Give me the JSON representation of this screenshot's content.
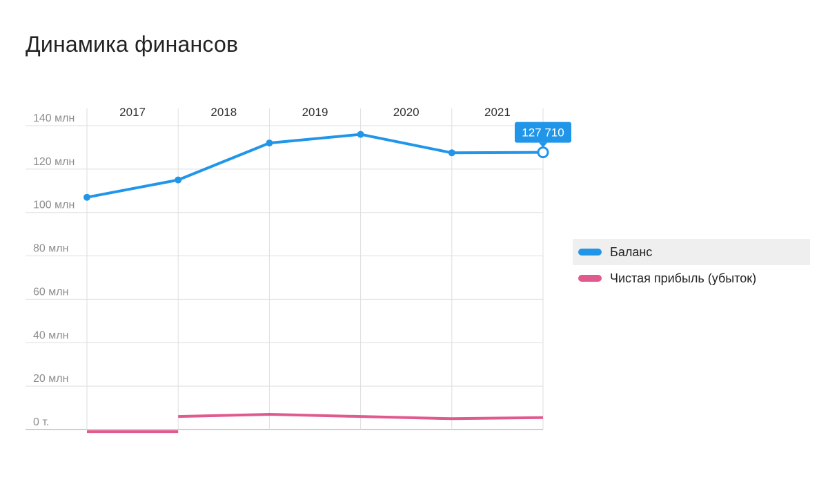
{
  "title": "Динамика финансов",
  "chart_data": {
    "type": "line",
    "title": "Динамика финансов",
    "categories": [
      "2017",
      "2018",
      "2019",
      "2020",
      "2021"
    ],
    "y_tick_labels": [
      "0 т.",
      "20 млн",
      "40 млн",
      "60 млн",
      "80 млн",
      "100 млн",
      "120 млн",
      "140 млн"
    ],
    "ylim": [
      0,
      140000000
    ],
    "grid": true,
    "legend_position": "right",
    "series": [
      {
        "name": "Баланс",
        "color": "#2196e9",
        "x": [
          2016.5,
          2017.5,
          2018.5,
          2019.5,
          2020.5,
          2021.5
        ],
        "values": [
          107000000,
          115000000,
          132000000,
          136000000,
          127500000,
          127710000
        ]
      },
      {
        "name": "Чистая прибыль (убыток)",
        "color": "#e05a8e",
        "segments": [
          {
            "x": [
              2016.5,
              2017.5
            ],
            "values": [
              -1000000,
              -1000000
            ]
          },
          {
            "x": [
              2017.5,
              2018.5,
              2019.5,
              2020.5,
              2021.5
            ],
            "values": [
              6000000,
              7000000,
              6000000,
              5000000,
              5500000
            ]
          }
        ]
      }
    ],
    "tooltip": {
      "label": "127 710"
    }
  }
}
